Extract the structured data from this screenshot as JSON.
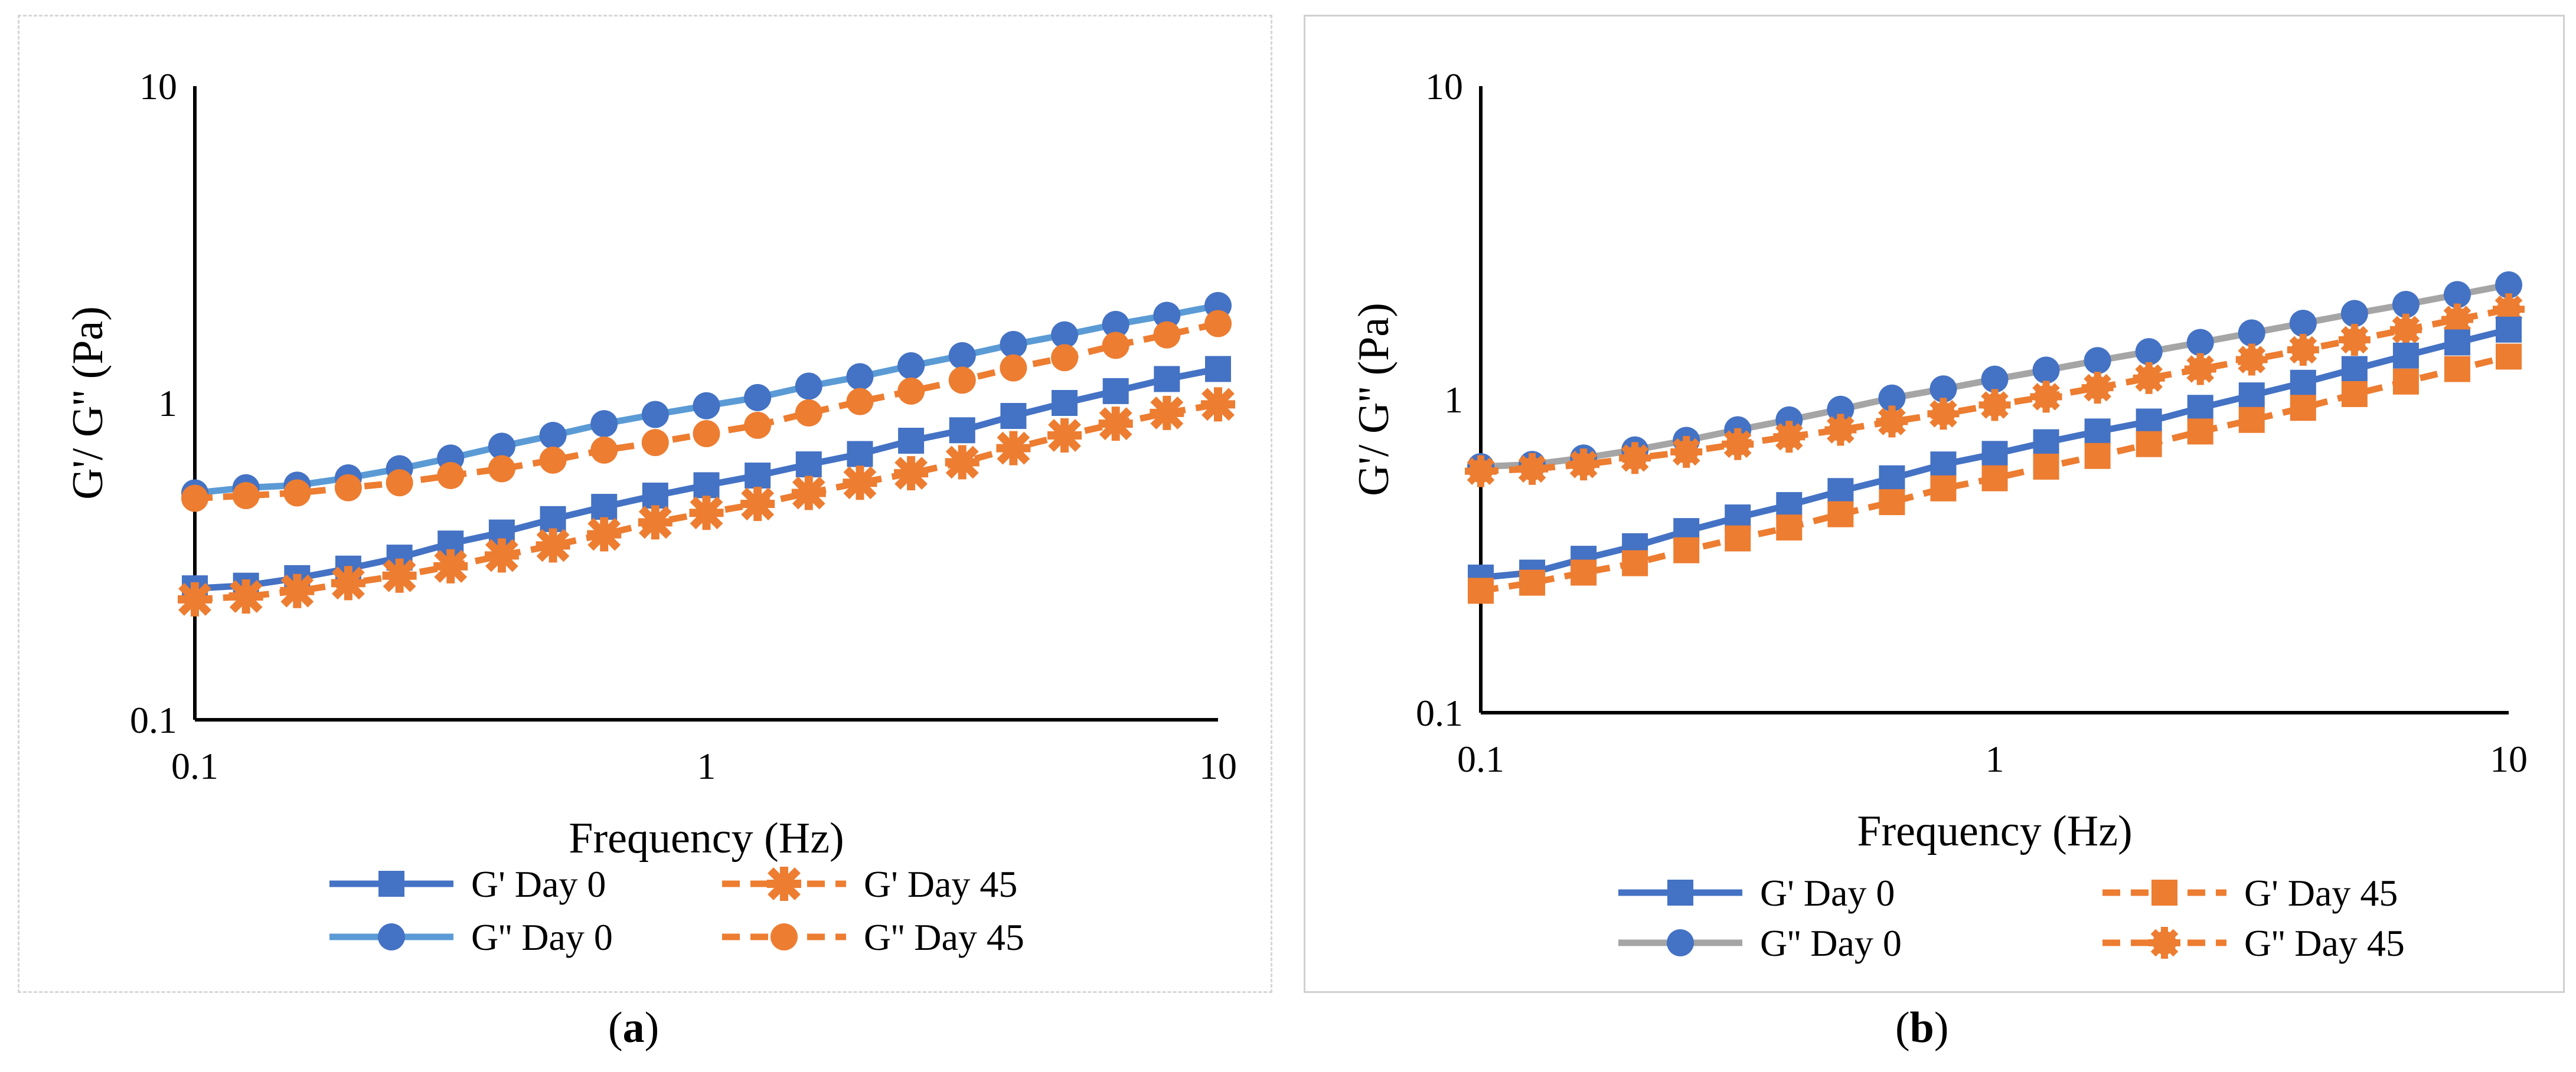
{
  "chart_data": [
    {
      "type": "line",
      "caption": "a",
      "xscale": "log",
      "yscale": "log",
      "xlim": [
        0.1,
        10
      ],
      "ylim": [
        0.1,
        10
      ],
      "xlabel": "Frequency (Hz)",
      "ylabel": "G'/ G'' (Pa)",
      "xticks": [
        "0.1",
        "1",
        "10"
      ],
      "yticks": [
        "0.1",
        "1",
        "10"
      ],
      "legend_position": "bottom",
      "x": [
        0.1,
        0.1259,
        0.1585,
        0.1995,
        0.2512,
        0.3162,
        0.3981,
        0.5012,
        0.631,
        0.7943,
        1.0,
        1.2589,
        1.5849,
        1.9953,
        2.5119,
        3.1623,
        3.9811,
        5.0119,
        6.3096,
        7.9433,
        10.0
      ],
      "series": [
        {
          "name": "G' Day 0",
          "color": "#4472c4",
          "dash": "solid",
          "marker": "square",
          "values": [
            0.26,
            0.265,
            0.28,
            0.3,
            0.325,
            0.36,
            0.39,
            0.43,
            0.47,
            0.51,
            0.55,
            0.59,
            0.64,
            0.69,
            0.76,
            0.82,
            0.91,
            1.0,
            1.09,
            1.19,
            1.28
          ]
        },
        {
          "name": "G' Day 45",
          "color": "#ed7d31",
          "dash": "dashed",
          "marker": "x-marker",
          "values": [
            0.24,
            0.245,
            0.255,
            0.27,
            0.285,
            0.305,
            0.33,
            0.355,
            0.385,
            0.42,
            0.45,
            0.48,
            0.52,
            0.56,
            0.6,
            0.65,
            0.72,
            0.79,
            0.86,
            0.93,
            0.99
          ]
        },
        {
          "name": "G'' Day 0",
          "color": "#5b9bd5",
          "marker_color": "#4472c4",
          "dash": "solid",
          "marker": "circle",
          "values": [
            0.52,
            0.54,
            0.55,
            0.58,
            0.62,
            0.67,
            0.73,
            0.79,
            0.86,
            0.92,
            0.98,
            1.04,
            1.13,
            1.21,
            1.31,
            1.41,
            1.53,
            1.64,
            1.77,
            1.89,
            2.03
          ]
        },
        {
          "name": "G'' Day 45",
          "color": "#ed7d31",
          "dash": "dashed",
          "marker": "circle",
          "values": [
            0.5,
            0.51,
            0.52,
            0.54,
            0.56,
            0.59,
            0.62,
            0.66,
            0.71,
            0.75,
            0.8,
            0.85,
            0.93,
            1.01,
            1.09,
            1.18,
            1.29,
            1.39,
            1.52,
            1.64,
            1.78
          ]
        }
      ]
    },
    {
      "type": "line",
      "caption": "b",
      "xscale": "log",
      "yscale": "log",
      "xlim": [
        0.1,
        10
      ],
      "ylim": [
        0.1,
        10
      ],
      "xlabel": "Frequency (Hz)",
      "ylabel": "G'/ G'' (Pa)",
      "xticks": [
        "0.1",
        "1",
        "10"
      ],
      "yticks": [
        "0.1",
        "1",
        "10"
      ],
      "legend_position": "bottom",
      "x": [
        0.1,
        0.1259,
        0.1585,
        0.1995,
        0.2512,
        0.3162,
        0.3981,
        0.5012,
        0.631,
        0.7943,
        1.0,
        1.2589,
        1.5849,
        1.9953,
        2.5119,
        3.1623,
        3.9811,
        5.0119,
        6.3096,
        7.9433,
        10.0
      ],
      "series": [
        {
          "name": "G' Day 0",
          "color": "#4472c4",
          "dash": "solid",
          "marker": "square",
          "values": [
            0.27,
            0.28,
            0.31,
            0.34,
            0.38,
            0.42,
            0.46,
            0.51,
            0.56,
            0.62,
            0.67,
            0.73,
            0.79,
            0.85,
            0.94,
            1.03,
            1.13,
            1.25,
            1.38,
            1.52,
            1.67
          ]
        },
        {
          "name": "G' Day 45",
          "color": "#ed7d31",
          "dash": "dashed",
          "marker": "square",
          "values": [
            0.245,
            0.26,
            0.28,
            0.3,
            0.33,
            0.36,
            0.39,
            0.43,
            0.47,
            0.52,
            0.56,
            0.61,
            0.66,
            0.72,
            0.79,
            0.86,
            0.94,
            1.04,
            1.14,
            1.25,
            1.37
          ]
        },
        {
          "name": "G'' Day 0",
          "color": "#a5a5a5",
          "marker_color": "#4472c4",
          "dash": "solid",
          "marker": "circle",
          "values": [
            0.61,
            0.62,
            0.65,
            0.69,
            0.74,
            0.8,
            0.86,
            0.93,
            1.01,
            1.08,
            1.16,
            1.24,
            1.33,
            1.42,
            1.52,
            1.63,
            1.75,
            1.88,
            2.01,
            2.16,
            2.32
          ]
        },
        {
          "name": "G'' Day 45",
          "color": "#ed7d31",
          "dash": "dashed",
          "marker": "gear",
          "values": [
            0.59,
            0.6,
            0.62,
            0.65,
            0.68,
            0.72,
            0.76,
            0.8,
            0.85,
            0.9,
            0.96,
            1.02,
            1.09,
            1.17,
            1.25,
            1.34,
            1.44,
            1.55,
            1.67,
            1.8,
            1.94
          ]
        }
      ]
    }
  ]
}
